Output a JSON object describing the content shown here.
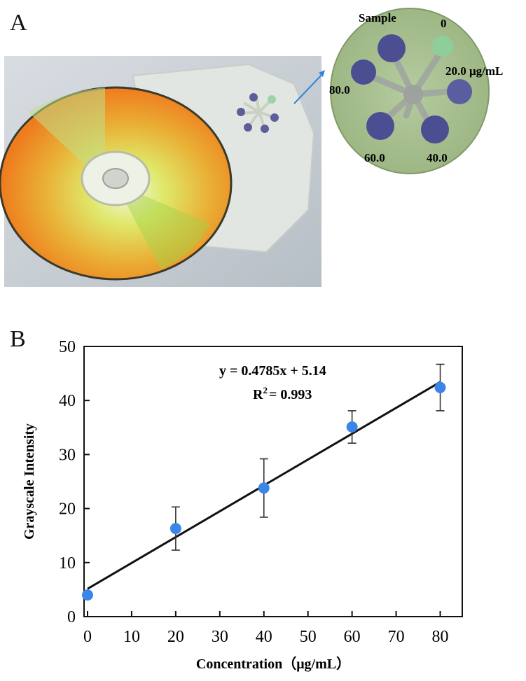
{
  "panels": {
    "a": "A",
    "b": "B"
  },
  "photo": {
    "well_labels": {
      "sample": "Sample",
      "w0": "0",
      "w20": "20.0 μg/mL",
      "w40": "40.0",
      "w60": "60.0",
      "w80": "80.0"
    },
    "colors": {
      "well": "#4c4e92",
      "well_zero": "#8fce9a",
      "chip": "#a9c391"
    }
  },
  "chart_data": {
    "type": "scatter",
    "xlabel": "Concentration（μg/mL）",
    "ylabel": "Grayscale Intensity",
    "xlim": [
      0,
      85
    ],
    "ylim": [
      0,
      50
    ],
    "xticks": [
      0,
      10,
      20,
      30,
      40,
      50,
      60,
      70,
      80
    ],
    "yticks": [
      0,
      10,
      20,
      30,
      40,
      50
    ],
    "x": [
      0,
      20,
      40,
      60,
      80
    ],
    "y": [
      4,
      16.3,
      23.8,
      35.1,
      42.4
    ],
    "error": [
      0,
      4,
      5.4,
      3,
      4.3
    ],
    "fit": {
      "slope": 0.4785,
      "intercept": 5.14,
      "equation": "y = 0.4785x + 5.14",
      "r2_label": "R",
      "r2_sup": "2",
      "r2_value": "= 0.993"
    },
    "colors": {
      "point": "#3a86e8",
      "line": "#111111"
    }
  }
}
